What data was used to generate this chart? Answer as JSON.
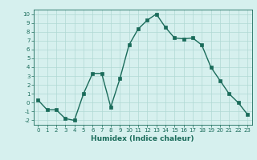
{
  "x": [
    0,
    1,
    2,
    3,
    4,
    5,
    6,
    7,
    8,
    9,
    10,
    11,
    12,
    13,
    14,
    15,
    16,
    17,
    18,
    19,
    20,
    21,
    22,
    23
  ],
  "y": [
    0.3,
    -0.8,
    -0.8,
    -1.8,
    -2.0,
    1.0,
    3.3,
    3.3,
    -0.5,
    2.7,
    6.5,
    8.3,
    9.3,
    10.0,
    8.5,
    7.3,
    7.2,
    7.3,
    6.5,
    4.0,
    2.5,
    1.0,
    0.0,
    -1.3
  ],
  "line_color": "#1a6b5a",
  "bg_color": "#d6f0ee",
  "grid_color": "#b0d8d4",
  "xlabel": "Humidex (Indice chaleur)",
  "xlim": [
    -0.5,
    23.5
  ],
  "ylim": [
    -2.5,
    10.5
  ],
  "yticks": [
    -2,
    -1,
    0,
    1,
    2,
    3,
    4,
    5,
    6,
    7,
    8,
    9,
    10
  ],
  "xticks": [
    0,
    1,
    2,
    3,
    4,
    5,
    6,
    7,
    8,
    9,
    10,
    11,
    12,
    13,
    14,
    15,
    16,
    17,
    18,
    19,
    20,
    21,
    22,
    23
  ],
  "tick_color": "#1a6b5a",
  "label_color": "#1a6b5a",
  "markersize": 2.5,
  "linewidth": 1.0,
  "label_fontsize": 6.5,
  "tick_fontsize": 5.0
}
